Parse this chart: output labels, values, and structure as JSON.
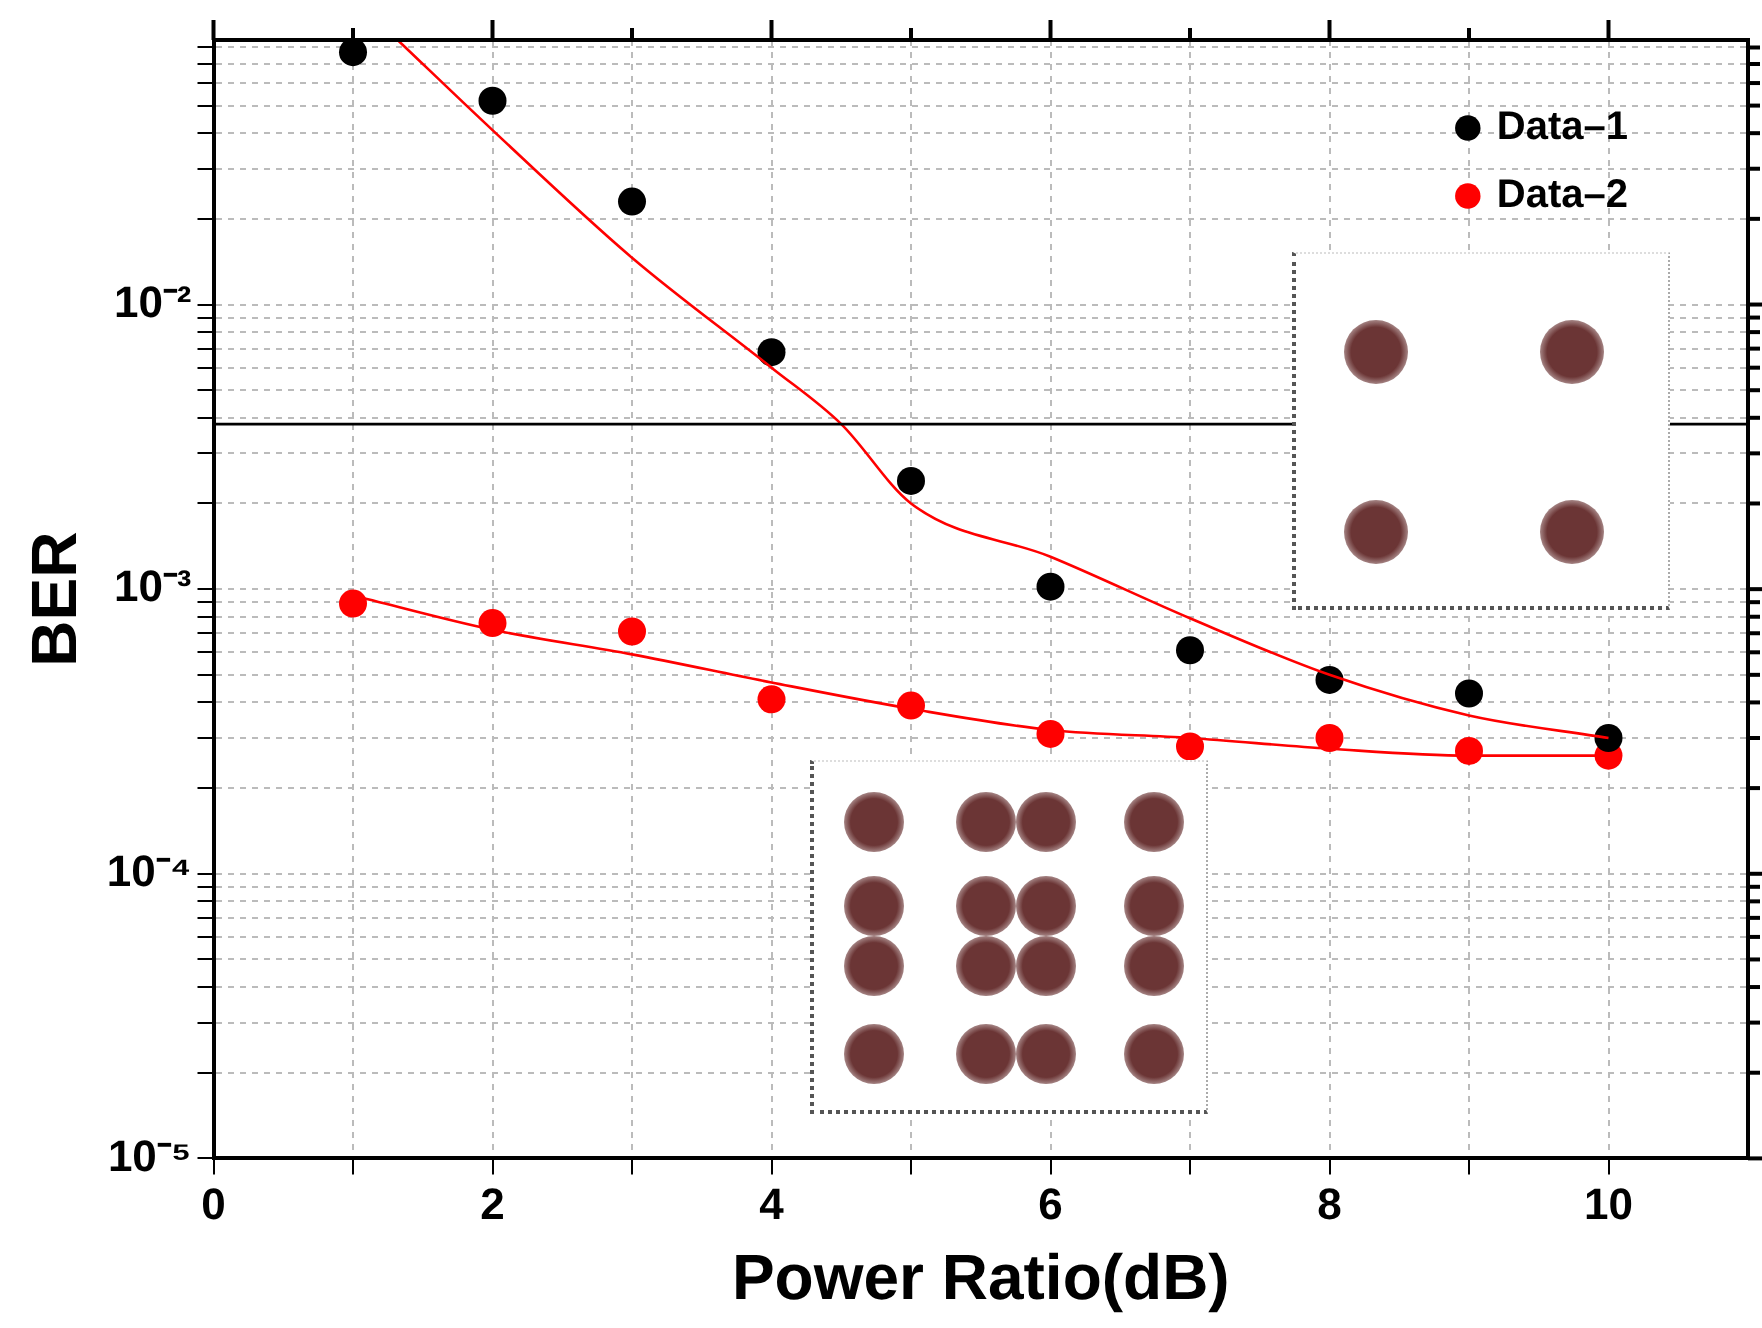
{
  "chart_data": {
    "type": "scatter",
    "xlabel": "Power Ratio(dB)",
    "ylabel": "BER",
    "log": "y",
    "grid": true,
    "legend": "top right",
    "marker": "circle",
    "xlim": [
      0,
      11
    ],
    "xticks": [
      0,
      {
        "value": 1,
        "label": null
      },
      2,
      {
        "value": 3,
        "label": null
      },
      4,
      {
        "value": 5,
        "label": null
      },
      6,
      {
        "value": 7,
        "label": null
      },
      8,
      {
        "value": 9,
        "label": null
      },
      10
    ],
    "ylim": [
      1e-05,
      0.085
    ],
    "yticks": [
      {
        "value": 1e-05,
        "label": "10⁻⁵"
      },
      {
        "value": 2e-05,
        "label": null
      },
      {
        "value": 3e-05,
        "label": null
      },
      {
        "value": 4e-05,
        "label": null
      },
      {
        "value": 5e-05,
        "label": null
      },
      {
        "value": 6e-05,
        "label": null
      },
      {
        "value": 7e-05,
        "label": null
      },
      {
        "value": 8e-05,
        "label": null
      },
      {
        "value": 9e-05,
        "label": null
      },
      {
        "value": 0.0001,
        "label": "10⁻⁴"
      },
      {
        "value": 0.0002,
        "label": null
      },
      {
        "value": 0.0003,
        "label": null
      },
      {
        "value": 0.0004,
        "label": null
      },
      {
        "value": 0.0005,
        "label": null
      },
      {
        "value": 0.0006,
        "label": null
      },
      {
        "value": 0.0007,
        "label": null
      },
      {
        "value": 0.0008,
        "label": null
      },
      {
        "value": 0.0009,
        "label": null
      },
      {
        "value": 0.001,
        "label": "10⁻³"
      },
      {
        "value": 0.002,
        "label": null
      },
      {
        "value": 0.003,
        "label": null
      },
      {
        "value": 0.004,
        "label": null
      },
      {
        "value": 0.005,
        "label": null
      },
      {
        "value": 0.006,
        "label": null
      },
      {
        "value": 0.007,
        "label": null
      },
      {
        "value": 0.008,
        "label": null
      },
      {
        "value": 0.009,
        "label": null
      },
      {
        "value": 0.01,
        "label": "10⁻²"
      },
      {
        "value": 0.02,
        "label": null
      },
      {
        "value": 0.03,
        "label": null
      },
      {
        "value": 0.04,
        "label": null
      },
      {
        "value": 0.05,
        "label": null
      },
      {
        "value": 0.06,
        "label": null
      },
      {
        "value": 0.07,
        "label": null
      },
      {
        "value": 0.08,
        "label": null
      }
    ],
    "ref_lines": [
      {
        "axis": "y",
        "value": 0.0038,
        "color": "#000000"
      }
    ],
    "series": [
      {
        "name": "Data–1",
        "color": "#000000",
        "x": [
          1,
          2,
          3,
          4,
          5,
          6,
          7,
          8,
          9,
          10
        ],
        "values": [
          0.077,
          0.052,
          0.023,
          0.0068,
          0.0024,
          0.00102,
          0.00061,
          0.00048,
          0.00043,
          0.0003
        ]
      },
      {
        "name": "Data–2",
        "color": "#ff0000",
        "x": [
          1,
          2,
          3,
          4,
          5,
          6,
          7,
          8,
          9,
          10
        ],
        "values": [
          0.00089,
          0.00076,
          0.00071,
          0.00041,
          0.00039,
          0.00031,
          0.00028,
          0.0003,
          0.00027,
          0.00026
        ]
      },
      {
        "type": "line",
        "marker": "none",
        "color": "#ff0000",
        "x": [
          1.32,
          2,
          3,
          4,
          4.5,
          5,
          6,
          7,
          8,
          9,
          10
        ],
        "values": [
          0.085,
          0.041,
          0.0146,
          0.006,
          0.0038,
          0.002,
          0.0013,
          0.00079,
          0.0005,
          0.00036,
          0.0003
        ]
      },
      {
        "type": "line",
        "marker": "none",
        "color": "#ff0000",
        "x": [
          1,
          2,
          3,
          4,
          5,
          6,
          7,
          8,
          9,
          10
        ],
        "values": [
          0.00095,
          0.00072,
          0.00059,
          0.00047,
          0.00038,
          0.00032,
          0.0003,
          0.000275,
          0.00026,
          0.00026
        ]
      }
    ]
  }
}
